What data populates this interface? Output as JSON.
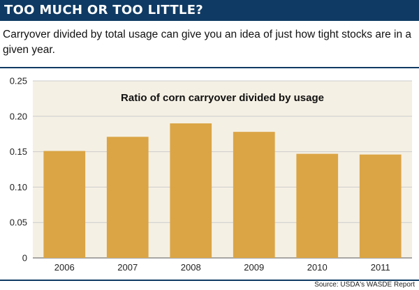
{
  "header": {
    "title": "TOO MUCH OR TOO LITTLE?"
  },
  "subtitle": "Carryover divided by total usage can give you an idea of just how tight stocks are in a given year.",
  "source": "Source: USDA's WASDE Report",
  "colors": {
    "header_bg": "#0f3a63",
    "bar": "#dba545",
    "plot_bg": "#f5f0e4",
    "gridline": "#cccccc"
  },
  "chart_data": {
    "type": "bar",
    "title": "Ratio of corn carryover divided by usage",
    "categories": [
      "2006",
      "2007",
      "2008",
      "2009",
      "2010",
      "2011"
    ],
    "values": [
      0.151,
      0.171,
      0.19,
      0.178,
      0.147,
      0.146
    ],
    "ylim": [
      0,
      0.25
    ],
    "yticks": [
      0,
      0.05,
      0.1,
      0.15,
      0.2,
      0.25
    ],
    "ytick_labels": [
      "0",
      "0.05",
      "0.10",
      "0.15",
      "0.20",
      "0.25"
    ],
    "xlabel": "",
    "ylabel": "",
    "grid": "horizontal",
    "legend": "none"
  }
}
